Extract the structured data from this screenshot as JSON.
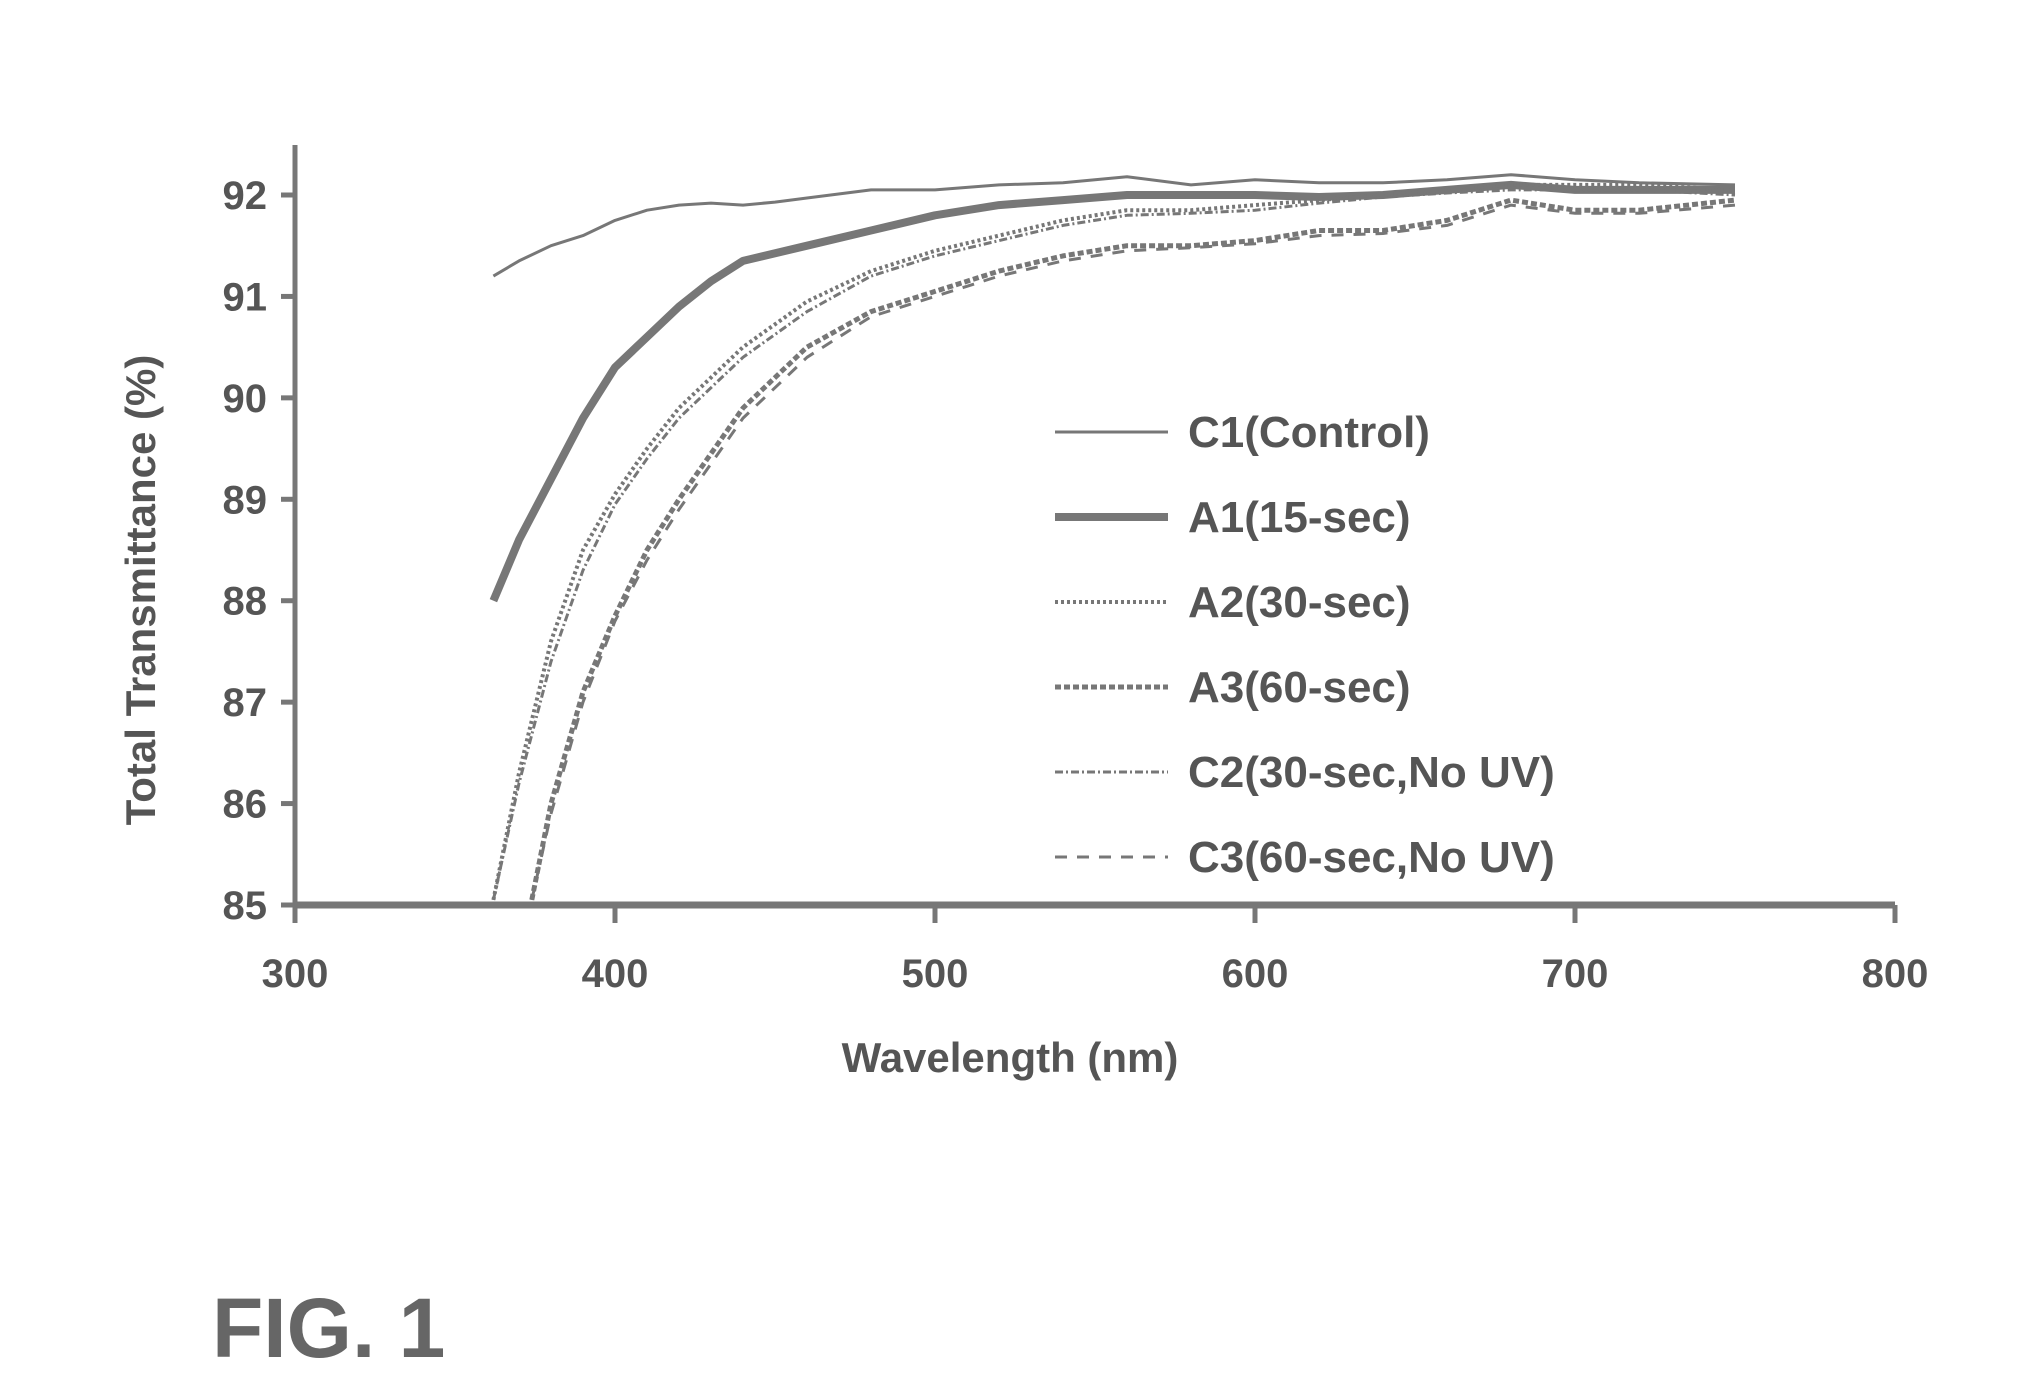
{
  "figure_label": "FIG. 1",
  "chart_data": {
    "type": "line",
    "title": "",
    "xlabel": "Wavelength (nm)",
    "ylabel": "Total Transmittance (%)",
    "xlim": [
      300,
      800
    ],
    "ylim": [
      85,
      92.5
    ],
    "xticks": [
      300,
      400,
      500,
      600,
      700,
      800
    ],
    "yticks": [
      85,
      86,
      87,
      88,
      89,
      90,
      91,
      92
    ],
    "grid": false,
    "legend_position": "center-right",
    "series": [
      {
        "name": "C1(Control)",
        "dash": "solid",
        "width": 3,
        "color": "#777777",
        "x": [
          362,
          370,
          380,
          390,
          400,
          410,
          420,
          430,
          440,
          450,
          460,
          480,
          500,
          520,
          540,
          560,
          580,
          600,
          620,
          640,
          660,
          680,
          700,
          720,
          750
        ],
        "y": [
          91.2,
          91.35,
          91.5,
          91.6,
          91.75,
          91.85,
          91.9,
          91.92,
          91.9,
          91.93,
          91.97,
          92.05,
          92.05,
          92.1,
          92.12,
          92.18,
          92.1,
          92.15,
          92.12,
          92.12,
          92.15,
          92.2,
          92.15,
          92.12,
          92.1
        ]
      },
      {
        "name": "A1(15-sec)",
        "dash": "solid",
        "width": 8,
        "color": "#777777",
        "x": [
          362,
          370,
          380,
          390,
          400,
          410,
          420,
          430,
          440,
          460,
          480,
          500,
          520,
          540,
          560,
          580,
          600,
          620,
          640,
          660,
          680,
          700,
          720,
          750
        ],
        "y": [
          88.0,
          88.6,
          89.2,
          89.8,
          90.3,
          90.6,
          90.9,
          91.15,
          91.35,
          91.5,
          91.65,
          91.8,
          91.9,
          91.95,
          92.0,
          92.0,
          92.0,
          91.98,
          92.0,
          92.05,
          92.1,
          92.05,
          92.05,
          92.05
        ]
      },
      {
        "name": "A2(30-sec)",
        "dash": "3 3",
        "width": 4,
        "color": "#777777",
        "x": [
          362,
          370,
          380,
          390,
          400,
          410,
          420,
          440,
          460,
          480,
          500,
          520,
          540,
          560,
          580,
          600,
          620,
          640,
          660,
          680,
          700,
          720,
          750
        ],
        "y": [
          85.05,
          86.3,
          87.6,
          88.5,
          89.05,
          89.5,
          89.9,
          90.5,
          90.95,
          91.25,
          91.45,
          91.6,
          91.75,
          91.85,
          91.85,
          91.9,
          91.95,
          92.0,
          92.05,
          92.1,
          92.1,
          92.1,
          92.05
        ]
      },
      {
        "name": "A3(60-sec)",
        "dash": "6 3",
        "width": 5,
        "color": "#777777",
        "x": [
          374,
          380,
          390,
          400,
          410,
          420,
          440,
          460,
          480,
          500,
          520,
          540,
          560,
          580,
          600,
          620,
          640,
          660,
          680,
          700,
          720,
          750
        ],
        "y": [
          85.05,
          86.0,
          87.1,
          87.85,
          88.5,
          89.0,
          89.9,
          90.5,
          90.85,
          91.05,
          91.25,
          91.4,
          91.5,
          91.5,
          91.55,
          91.65,
          91.65,
          91.75,
          91.95,
          91.85,
          91.85,
          91.95
        ]
      },
      {
        "name": "C2(30-sec,No UV)",
        "dash": "8 3 2 3",
        "width": 3,
        "color": "#777777",
        "x": [
          362,
          370,
          380,
          390,
          400,
          410,
          420,
          440,
          460,
          480,
          500,
          520,
          540,
          560,
          580,
          600,
          620,
          640,
          660,
          680,
          700,
          720,
          750
        ],
        "y": [
          85.05,
          86.2,
          87.4,
          88.3,
          88.95,
          89.4,
          89.8,
          90.4,
          90.85,
          91.2,
          91.4,
          91.55,
          91.7,
          91.8,
          91.82,
          91.85,
          91.92,
          91.98,
          92.02,
          92.05,
          92.05,
          92.05,
          92.0
        ]
      },
      {
        "name": "C3(60-sec,No UV)",
        "dash": "12 10",
        "width": 3,
        "color": "#777777",
        "x": [
          374,
          380,
          390,
          400,
          410,
          420,
          440,
          460,
          480,
          500,
          520,
          540,
          560,
          580,
          600,
          620,
          640,
          660,
          680,
          700,
          720,
          750
        ],
        "y": [
          85.05,
          85.9,
          87.0,
          87.8,
          88.4,
          88.9,
          89.8,
          90.4,
          90.8,
          91.0,
          91.2,
          91.35,
          91.45,
          91.48,
          91.52,
          91.6,
          91.62,
          91.7,
          91.9,
          91.82,
          91.82,
          91.9
        ]
      }
    ]
  }
}
